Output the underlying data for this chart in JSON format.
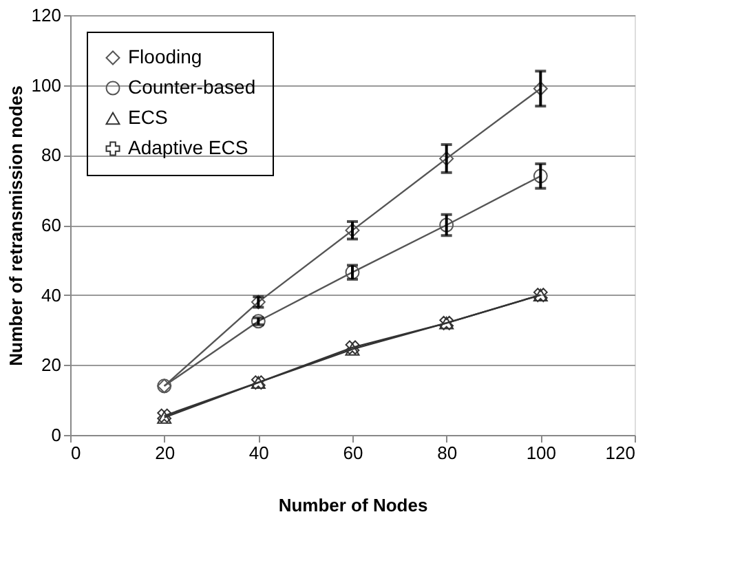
{
  "chart_data": {
    "type": "line",
    "xlabel": "Number of Nodes",
    "ylabel": "Number of retransmission nodes",
    "x": [
      20,
      40,
      60,
      80,
      100
    ],
    "series": [
      {
        "name": "Flooding",
        "color": "#555555",
        "marker": "diamond",
        "values": [
          14,
          38,
          58.5,
          79,
          99
        ],
        "errors": [
          null,
          1.5,
          2.5,
          4,
          5
        ]
      },
      {
        "name": "Counter-based",
        "color": "#555555",
        "marker": "circle",
        "values": [
          14,
          32.5,
          46.5,
          60,
          74
        ],
        "errors": [
          null,
          1,
          2,
          3,
          3.5
        ]
      },
      {
        "name": "ECS",
        "color": "#333333",
        "marker": "triangle",
        "values": [
          5,
          15,
          24.5,
          32,
          40
        ]
      },
      {
        "name": "Adaptive ECS",
        "color": "#333333",
        "marker": "cross",
        "values": [
          5.5,
          15,
          25,
          32,
          40
        ]
      }
    ],
    "xlim": [
      0,
      120
    ],
    "xticks": [
      0,
      20,
      40,
      60,
      80,
      100,
      120
    ],
    "ylim": [
      0,
      120
    ],
    "yticks": [
      0,
      20,
      40,
      60,
      80,
      100,
      120
    ],
    "grid": "y",
    "legend": "top left",
    "line_style": "solid"
  }
}
